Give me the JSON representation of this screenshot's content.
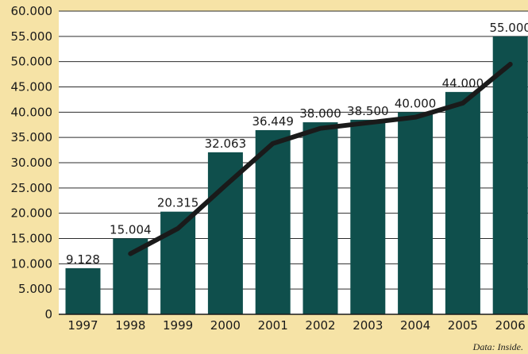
{
  "chart_data": {
    "type": "bar",
    "categories": [
      "1997",
      "1998",
      "1999",
      "2000",
      "2001",
      "2002",
      "2003",
      "2004",
      "2005",
      "2006"
    ],
    "values": [
      9128,
      15004,
      20315,
      32063,
      36449,
      38000,
      38500,
      40000,
      44000,
      55000
    ],
    "value_labels": [
      "9.128",
      "15.004",
      "20.315",
      "32.063",
      "36.449",
      "38.000",
      "38.500",
      "40.000",
      "44.000",
      "55.000"
    ],
    "trend_line": {
      "categories": [
        "1998",
        "1999",
        "2000",
        "2001",
        "2002",
        "2003",
        "2004",
        "2005",
        "2006"
      ],
      "values": [
        12000,
        17000,
        25500,
        33800,
        36800,
        37900,
        39000,
        41800,
        49500
      ]
    },
    "yticks": [
      0,
      5000,
      10000,
      15000,
      20000,
      25000,
      30000,
      35000,
      40000,
      45000,
      50000,
      55000,
      60000
    ],
    "ytick_labels": [
      "0",
      "5.000",
      "10.000",
      "15.000",
      "20.000",
      "25.000",
      "30.000",
      "35.000",
      "40.000",
      "45.000",
      "50.000",
      "55.000",
      "60.000"
    ],
    "ylim": [
      0,
      60000
    ],
    "title": "",
    "xlabel": "",
    "ylabel": "",
    "grid": true,
    "legend": "none",
    "colors": {
      "bar": "#0f4f4c",
      "line": "#1a1a1a",
      "plot_background": "#ffffff",
      "page_background": "#f6e3a6",
      "grid": "#2c2c2c"
    }
  },
  "source_note": "Data: Inside."
}
